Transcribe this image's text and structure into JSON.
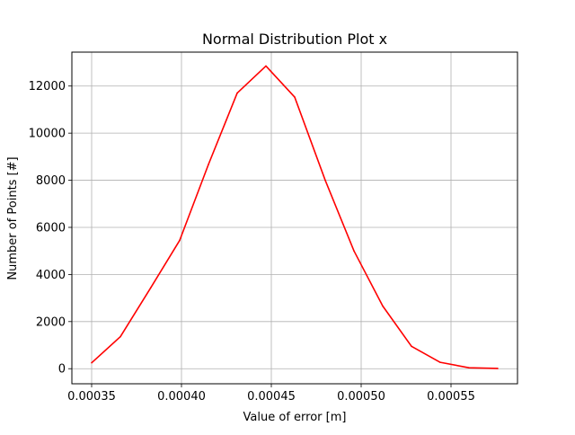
{
  "chart_data": {
    "type": "line",
    "title": "Normal Distribution Plot x",
    "xlabel": "Value of error [m]",
    "ylabel": "Number of Points [#]",
    "xlim": [
      0.000339,
      0.000587
    ],
    "ylim": [
      -640,
      13440
    ],
    "grid": true,
    "x_ticks": [
      0.00035,
      0.0004,
      0.00045,
      0.0005,
      0.00055
    ],
    "x_tick_labels": [
      "0.00035",
      "0.00040",
      "0.00045",
      "0.00050",
      "0.00055"
    ],
    "y_ticks": [
      0,
      2000,
      4000,
      6000,
      8000,
      10000,
      12000
    ],
    "y_tick_labels": [
      "0",
      "2000",
      "4000",
      "6000",
      "8000",
      "10000",
      "12000"
    ],
    "series": [
      {
        "color": "#ff0000",
        "x": [
          0.00035,
          0.000366,
          0.000383,
          0.000399,
          0.000415,
          0.000431,
          0.000447,
          0.000463,
          0.00048,
          0.000496,
          0.000512,
          0.000528,
          0.000544,
          0.00056,
          0.000576
        ],
        "y": [
          250,
          1360,
          3450,
          5450,
          8670,
          11700,
          12850,
          11530,
          8000,
          5000,
          2660,
          950,
          270,
          40,
          10
        ]
      }
    ]
  }
}
